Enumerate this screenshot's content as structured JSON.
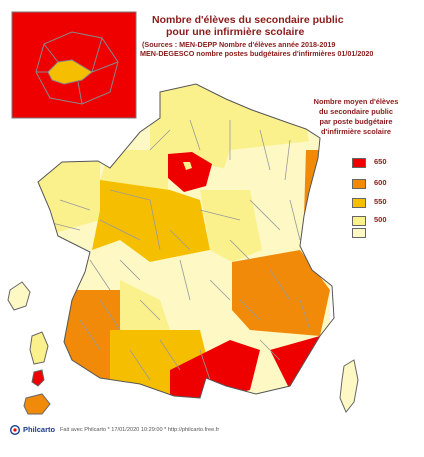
{
  "title": {
    "line1": "Nombre d'élèves du secondaire public",
    "line2": "pour une infirmière scolaire",
    "source1": "(Sources : MEN-DEPP Nombre d'élèves année 2018-2019",
    "source2": "MEN-DEGESCO nombre postes budgétaires d'infirmières 01/01/2020"
  },
  "legend": {
    "title_lines": [
      "Nombre moyen d'élèves",
      "du secondaire public",
      "par poste budgétaire",
      "d'infirmière scolaire"
    ],
    "classes": [
      {
        "label": "650",
        "color": "#ee0000"
      },
      {
        "label": "600",
        "color": "#f08a08"
      },
      {
        "label": "550",
        "color": "#f5bf00"
      },
      {
        "label": "500",
        "color": "#fbf18c"
      },
      {
        "label": "",
        "color": "#fdf8c4"
      }
    ]
  },
  "footer": {
    "brand": "Philcarto",
    "credit": "Fait avec Philcarto * 17/01/2020 10:29:00 * http://philcarto.free.fr"
  },
  "colors": {
    "border": "#999999",
    "outline": "#555555",
    "title_color": "#8b1a1a"
  }
}
